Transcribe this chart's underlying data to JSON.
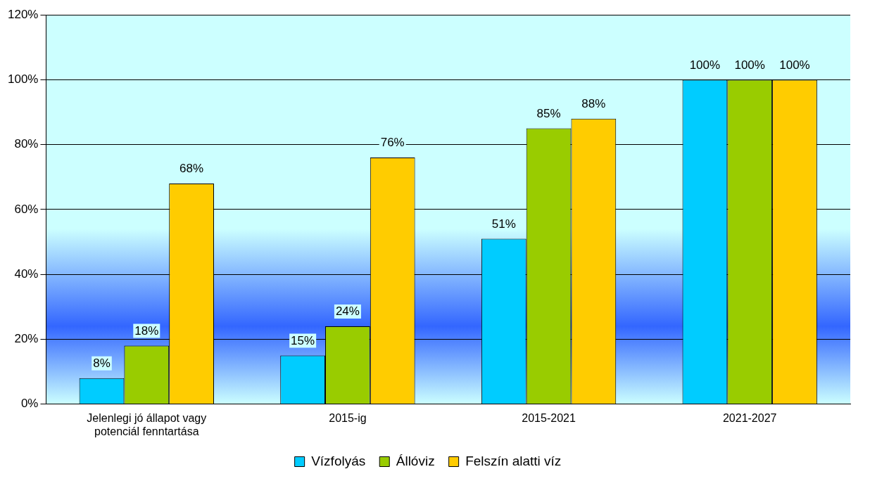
{
  "chart_data": {
    "type": "bar",
    "categories": [
      "Jelenlegi jó állapot vagy potenciál fenntartása",
      "2015-ig",
      "2015-2021",
      "2021-2027"
    ],
    "series": [
      {
        "name": "Vízfolyás",
        "color": "#00ccff",
        "values": [
          8,
          15,
          51,
          100
        ],
        "value_labels": [
          "8%",
          "15%",
          "51%",
          "100%"
        ]
      },
      {
        "name": "Állóviz",
        "color": "#99cc00",
        "values": [
          18,
          24,
          85,
          100
        ],
        "value_labels": [
          "18%",
          "24%",
          "85%",
          "100%"
        ]
      },
      {
        "name": "Felszín alatti víz",
        "color": "#ffcc00",
        "values": [
          68,
          76,
          88,
          100
        ],
        "value_labels": [
          "68%",
          "76%",
          "88%",
          "100%"
        ]
      }
    ],
    "ylim": [
      0,
      120
    ],
    "yticks": [
      {
        "value": 0,
        "label": "0%"
      },
      {
        "value": 20,
        "label": "20%"
      },
      {
        "value": 40,
        "label": "40%"
      },
      {
        "value": 60,
        "label": "60%"
      },
      {
        "value": 80,
        "label": "80%"
      },
      {
        "value": 100,
        "label": "100%"
      },
      {
        "value": 120,
        "label": "120%"
      }
    ],
    "grid": "y",
    "legend": "bottom"
  }
}
